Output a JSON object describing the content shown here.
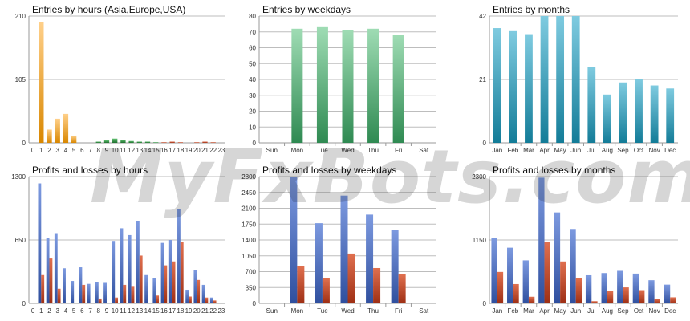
{
  "watermark": "MyFxBots.com",
  "colors": {
    "orange": "#e8950f",
    "green": "#2e8b45",
    "lightgreen": "#7fcf9c",
    "teal": "#2a9fc0",
    "blue": "#4a6fc0",
    "red": "#c94a2f"
  },
  "chart_data": [
    {
      "id": "entries_hours",
      "type": "bar",
      "title": "Entries by hours (Asia,Europe,USA)",
      "categories": [
        "0",
        "1",
        "2",
        "3",
        "4",
        "5",
        "6",
        "7",
        "8",
        "9",
        "10",
        "11",
        "12",
        "13",
        "14",
        "15",
        "16",
        "17",
        "18",
        "19",
        "20",
        "21",
        "22",
        "23"
      ],
      "series": [
        {
          "values": [
            0,
            200,
            22,
            40,
            48,
            12,
            0,
            0,
            0,
            0,
            0,
            0,
            0,
            0,
            0,
            0,
            0,
            0,
            0,
            0,
            0,
            0,
            0,
            0
          ],
          "color": "orange"
        },
        {
          "values": [
            0,
            0,
            0,
            0,
            0,
            0,
            0,
            0,
            2,
            4,
            7,
            5,
            3,
            2,
            2,
            1,
            0,
            0,
            0,
            0,
            0,
            0,
            0,
            0
          ],
          "color": "green"
        },
        {
          "values": [
            0,
            0,
            0,
            0,
            0,
            0,
            0,
            0,
            0,
            0,
            0,
            0,
            0,
            0,
            0,
            0,
            1,
            2,
            1,
            0,
            1,
            2,
            1,
            0
          ],
          "color": "red"
        }
      ],
      "ylim": [
        0,
        210
      ],
      "yticks": [
        0,
        105,
        210
      ],
      "stacked": false,
      "overlap": true
    },
    {
      "id": "entries_weekdays",
      "type": "bar",
      "title": "Entries by weekdays",
      "categories": [
        "Sun",
        "Mon",
        "Tue",
        "Wed",
        "Thu",
        "Fri",
        "Sat"
      ],
      "series": [
        {
          "values": [
            0,
            72,
            73,
            71,
            72,
            68,
            0
          ],
          "color": "lightgreen"
        }
      ],
      "ylim": [
        0,
        80
      ],
      "yticks": [
        0,
        10,
        20,
        30,
        40,
        50,
        60,
        70,
        80
      ]
    },
    {
      "id": "entries_months",
      "type": "bar",
      "title": "Entries by months",
      "categories": [
        "Jan",
        "Feb",
        "Mar",
        "Apr",
        "May",
        "Jun",
        "Jul",
        "Aug",
        "Sep",
        "Oct",
        "Nov",
        "Dec"
      ],
      "series": [
        {
          "values": [
            38,
            37,
            36,
            42,
            42,
            42,
            25,
            16,
            20,
            21,
            19,
            18
          ],
          "color": "teal"
        }
      ],
      "ylim": [
        0,
        42
      ],
      "yticks": [
        0,
        21,
        42
      ]
    },
    {
      "id": "pl_hours",
      "type": "bar",
      "title": "Profits and losses by hours",
      "categories": [
        "0",
        "1",
        "2",
        "3",
        "4",
        "5",
        "6",
        "7",
        "8",
        "9",
        "10",
        "11",
        "12",
        "13",
        "14",
        "15",
        "16",
        "17",
        "18",
        "19",
        "20",
        "21",
        "22",
        "23"
      ],
      "series": [
        {
          "name": "Profits",
          "values": [
            0,
            1230,
            670,
            720,
            360,
            230,
            370,
            200,
            220,
            210,
            640,
            770,
            700,
            840,
            290,
            260,
            620,
            650,
            970,
            140,
            340,
            190,
            60,
            0
          ],
          "color": "blue"
        },
        {
          "name": "Losses",
          "values": [
            0,
            290,
            460,
            150,
            0,
            0,
            190,
            0,
            50,
            0,
            60,
            190,
            170,
            490,
            0,
            80,
            390,
            430,
            630,
            70,
            240,
            60,
            30,
            0
          ],
          "color": "red"
        }
      ],
      "ylim": [
        0,
        1300
      ],
      "yticks": [
        0,
        650,
        1300
      ]
    },
    {
      "id": "pl_weekdays",
      "type": "bar",
      "title": "Profits and losses by weekdays",
      "categories": [
        "Sun",
        "Mon",
        "Tue",
        "Wed",
        "Thu",
        "Fri",
        "Sat"
      ],
      "series": [
        {
          "name": "Profits",
          "values": [
            0,
            2800,
            1770,
            2380,
            1960,
            1630,
            0
          ],
          "color": "blue"
        },
        {
          "name": "Losses",
          "values": [
            0,
            820,
            550,
            1100,
            780,
            640,
            0
          ],
          "color": "red"
        }
      ],
      "ylim": [
        0,
        2800
      ],
      "yticks": [
        0,
        350,
        700,
        1050,
        1400,
        1750,
        2100,
        2450,
        2800
      ]
    },
    {
      "id": "pl_months",
      "type": "bar",
      "title": "Profits and losses by months",
      "categories": [
        "Jan",
        "Feb",
        "Mar",
        "Apr",
        "May",
        "Jun",
        "Jul",
        "Aug",
        "Sep",
        "Oct",
        "Nov",
        "Dec"
      ],
      "series": [
        {
          "name": "Profits",
          "values": [
            1190,
            1010,
            780,
            2280,
            1650,
            1350,
            510,
            550,
            590,
            540,
            420,
            340
          ],
          "color": "blue"
        },
        {
          "name": "Losses",
          "values": [
            570,
            350,
            120,
            1110,
            760,
            460,
            40,
            220,
            290,
            240,
            80,
            110
          ],
          "color": "red"
        }
      ],
      "ylim": [
        0,
        2300
      ],
      "yticks": [
        0,
        1150,
        2300
      ]
    }
  ]
}
